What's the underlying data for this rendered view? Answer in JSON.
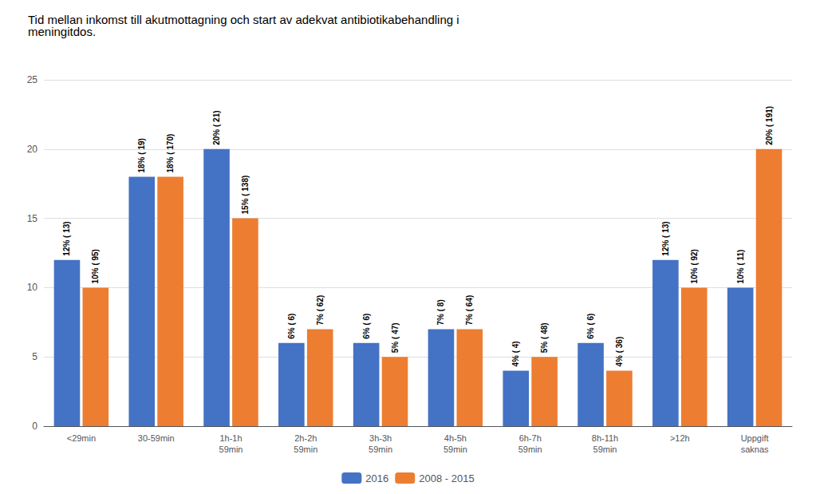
{
  "chart_data": {
    "type": "bar",
    "title": "Tid mellan inkomst till akutmottagning och start av adekvat antibiotikabehandling i\nmeningitdos.",
    "categories": [
      "<29min",
      "30-59min",
      "1h-1h\n59min",
      "2h-2h\n59min",
      "3h-3h\n59min",
      "4h-5h\n59min",
      "6h-7h\n59min",
      "8h-11h\n59min",
      ">12h",
      "Uppgift\nsaknas"
    ],
    "series": [
      {
        "name": "2016",
        "color": "#4472C4",
        "values": [
          12,
          18,
          20,
          6,
          6,
          7,
          4,
          6,
          12,
          10
        ],
        "value_labels": [
          "12% ( 13)",
          "18% ( 19)",
          "20% ( 21)",
          "6% ( 6)",
          "6% ( 6)",
          "7% ( 8)",
          "4% ( 4)",
          "6% ( 6)",
          "12% ( 13)",
          "10% ( 11)"
        ]
      },
      {
        "name": "2008 - 2015",
        "color": "#ED7D31",
        "values": [
          10,
          18,
          15,
          7,
          5,
          7,
          5,
          4,
          10,
          20
        ],
        "value_labels": [
          "10% ( 95)",
          "18% ( 170)",
          "15% ( 138)",
          "7% ( 62)",
          "5% ( 47)",
          "7% ( 64)",
          "5% ( 48)",
          "4% ( 36)",
          "10% ( 92)",
          "20% ( 191)"
        ]
      }
    ],
    "ylim": [
      0,
      25
    ],
    "yticks": [
      0,
      5,
      10,
      15,
      20,
      25
    ],
    "grid": true,
    "legend": "bottom",
    "data_labels": true
  }
}
